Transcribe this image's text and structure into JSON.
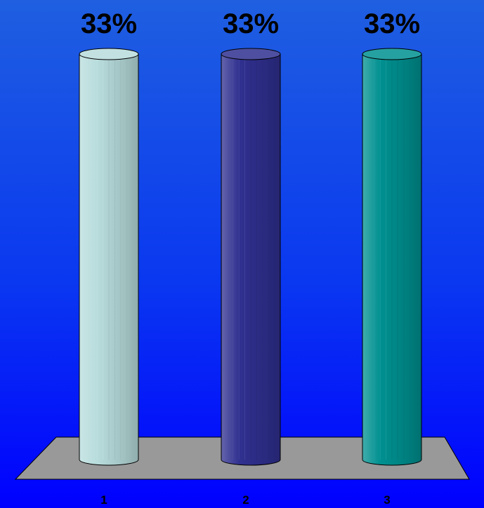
{
  "chart_data": {
    "type": "bar",
    "categories": [
      "1",
      "2",
      "3"
    ],
    "values": [
      33,
      33,
      33
    ],
    "data_labels": [
      "33%",
      "33%",
      "33%"
    ],
    "ylim": [
      0,
      33
    ],
    "grid": false,
    "legend": "none",
    "bar_shape": "cylinder",
    "colors": [
      "#b8dcdc",
      "#303090",
      "#009090"
    ],
    "floor_color": "#999999",
    "background_colors": [
      "#1f5fe0",
      "#0000ff"
    ]
  }
}
